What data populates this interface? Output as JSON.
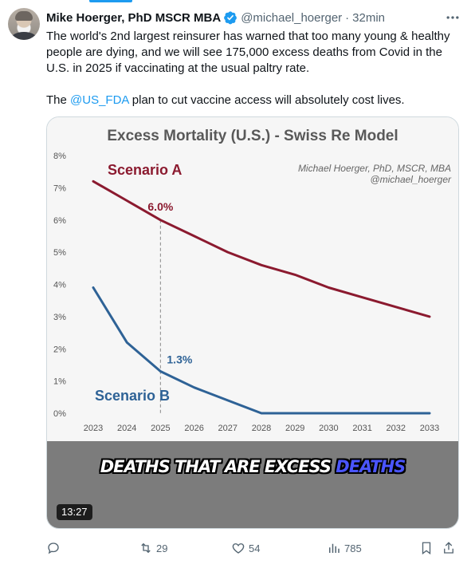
{
  "author": {
    "name": "Mike Hoerger, PhD MSCR MBA",
    "handle": "@michael_hoerger",
    "separator": "·",
    "time": "32min"
  },
  "tweet": {
    "paragraph1": "The world's 2nd largest reinsurer has warned that too many young & healthy people are dying, and we will see 175,000 excess deaths from Covid in the U.S. in 2025 if vaccinating at the usual paltry rate.",
    "p2_before": "The ",
    "p2_mention": "@US_FDA",
    "p2_after": " plan to cut vaccine access will absolutely cost lives."
  },
  "video": {
    "caption_main": "DEATHS THAT ARE EXCESS ",
    "caption_highlight": "DEATHS",
    "duration": "13:27"
  },
  "actions": {
    "retweets": "29",
    "likes": "54",
    "views": "785"
  },
  "colors": {
    "accent": "#1d9bf0",
    "scenario_a": "#8b1a2f",
    "scenario_b": "#2e6296"
  },
  "chart_data": {
    "type": "line",
    "title": "Excess Mortality (U.S.) - Swiss Re Model",
    "watermark_line1": "Michael Hoerger, PhD, MSCR, MBA",
    "watermark_line2": "@michael_hoerger",
    "x": [
      "2023",
      "2024",
      "2025",
      "2026",
      "2027",
      "2028",
      "2029",
      "2030",
      "2031",
      "2032",
      "2033"
    ],
    "y_ticks": [
      "0%",
      "1%",
      "2%",
      "3%",
      "4%",
      "5%",
      "6%",
      "7%",
      "8%"
    ],
    "ylim": [
      0,
      8
    ],
    "grid": false,
    "series": [
      {
        "name": "Scenario A",
        "values": [
          7.2,
          6.6,
          6.0,
          5.5,
          5.0,
          4.6,
          4.3,
          3.9,
          3.6,
          3.3,
          3.0
        ]
      },
      {
        "name": "Scenario B",
        "values": [
          3.9,
          2.2,
          1.3,
          0.8,
          0.4,
          0.0,
          0.0,
          0.0,
          0.0,
          0.0,
          0.0
        ]
      }
    ],
    "annotations": [
      {
        "text": "6.0%",
        "series": 0,
        "x": "2025"
      },
      {
        "text": "1.3%",
        "series": 1,
        "x": "2025"
      }
    ],
    "reference_line_x": "2025"
  }
}
